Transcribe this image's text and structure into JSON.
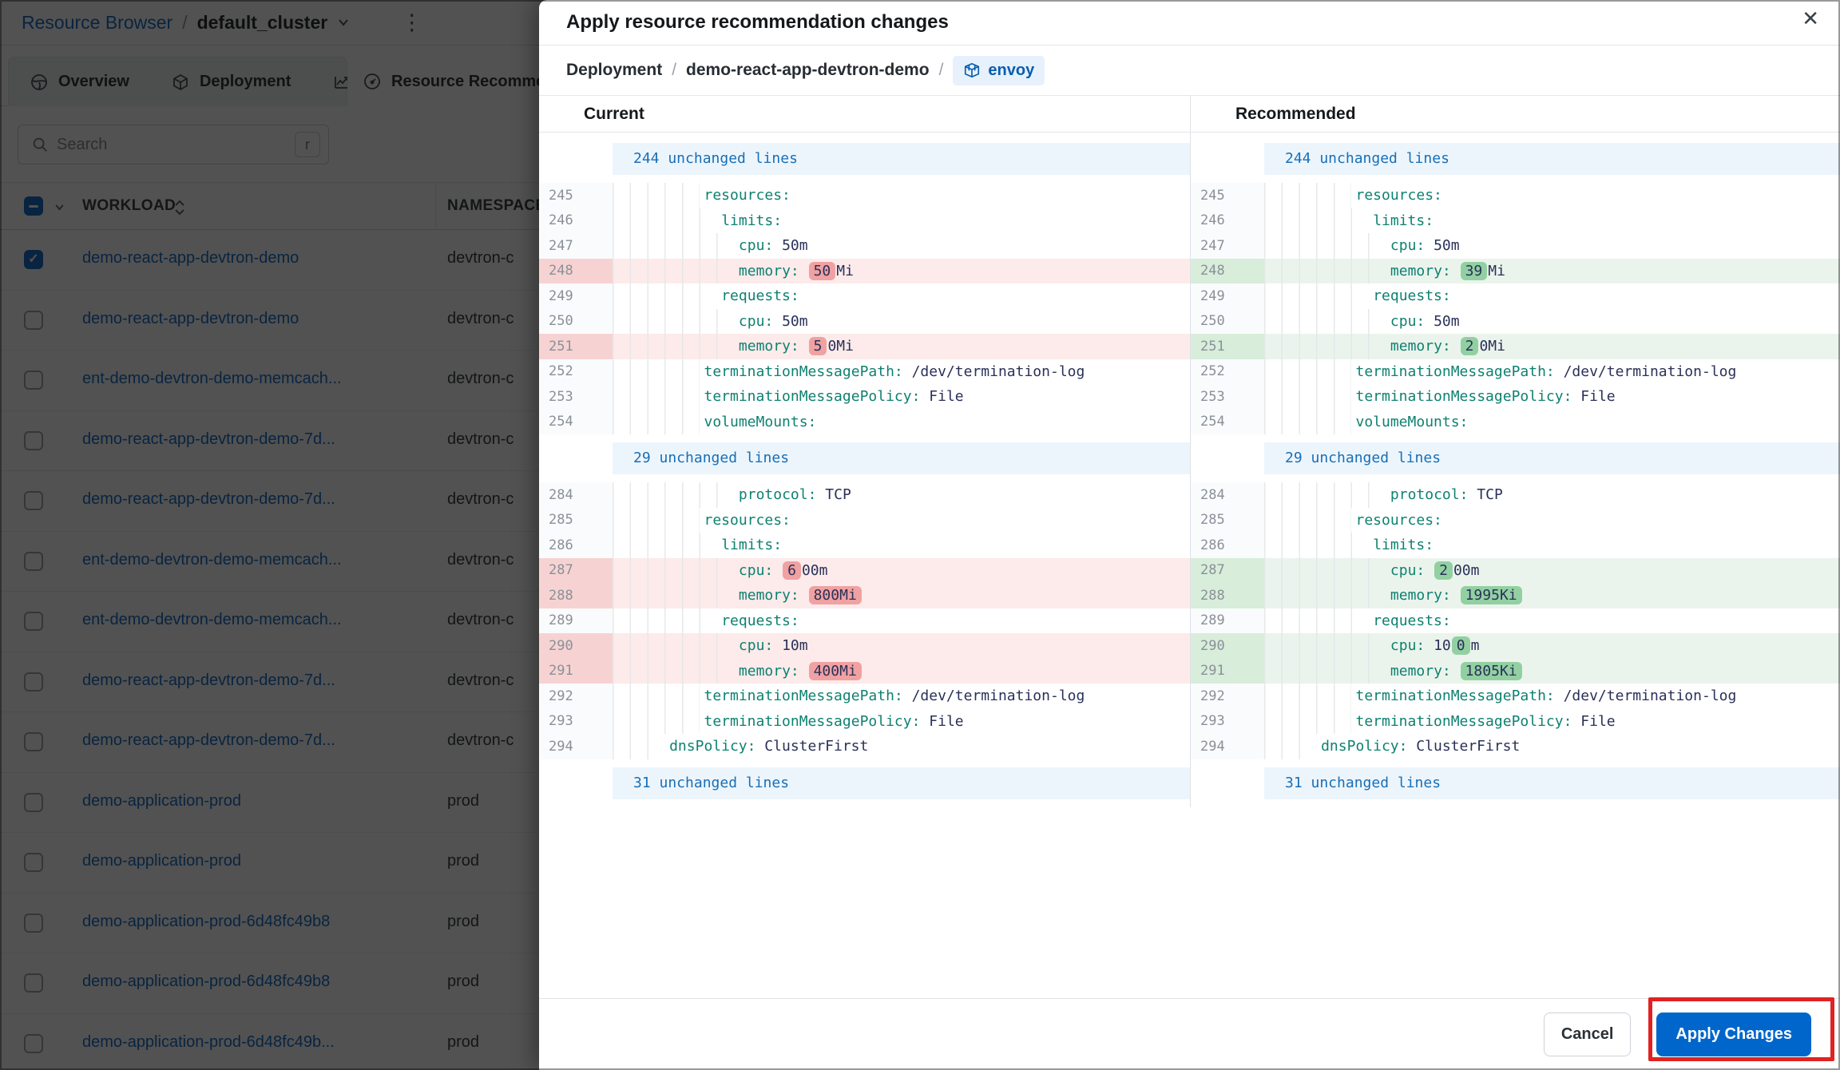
{
  "colors": {
    "accent_blue": "#0066cc",
    "link_blue": "#0a66c2",
    "yaml_key": "#0e8171",
    "yaml_value": "#2a3158",
    "diff_removed_line": "#fcebea",
    "diff_removed_chip": "#f0a1a1",
    "diff_added_line": "#ebf4ec",
    "diff_added_chip": "#92d0a2",
    "unchanged_band": "#edf5fc",
    "annotation_red": "#e02222"
  },
  "background": {
    "header": {
      "root": "Resource Browser",
      "separator": "/",
      "cluster": "default_cluster",
      "kebab_icon": "⋮"
    },
    "tabs": [
      {
        "label": "Overview",
        "icon": "globe-icon"
      },
      {
        "label": "Deployment",
        "icon": "cube-icon"
      },
      {
        "label": "",
        "icon": "line-chart-icon"
      },
      {
        "label": "Resource Recommendations",
        "icon": "gauge-icon",
        "active": true
      }
    ],
    "search": {
      "placeholder": "Search",
      "shortcut": "r"
    },
    "table": {
      "columns": {
        "workload": "WORKLOAD",
        "namespace": "NAMESPACE"
      },
      "rows": [
        {
          "workload": "demo-react-app-devtron-demo",
          "namespace": "devtron-c",
          "checked": true
        },
        {
          "workload": "demo-react-app-devtron-demo",
          "namespace": "devtron-c",
          "checked": false
        },
        {
          "workload": "ent-demo-devtron-demo-memcach...",
          "namespace": "devtron-c",
          "checked": false
        },
        {
          "workload": "demo-react-app-devtron-demo-7d...",
          "namespace": "devtron-c",
          "checked": false
        },
        {
          "workload": "demo-react-app-devtron-demo-7d...",
          "namespace": "devtron-c",
          "checked": false
        },
        {
          "workload": "ent-demo-devtron-demo-memcach...",
          "namespace": "devtron-c",
          "checked": false
        },
        {
          "workload": "ent-demo-devtron-demo-memcach...",
          "namespace": "devtron-c",
          "checked": false
        },
        {
          "workload": "demo-react-app-devtron-demo-7d...",
          "namespace": "devtron-c",
          "checked": false
        },
        {
          "workload": "demo-react-app-devtron-demo-7d...",
          "namespace": "devtron-c",
          "checked": false
        },
        {
          "workload": "demo-application-prod",
          "namespace": "prod",
          "checked": false
        },
        {
          "workload": "demo-application-prod",
          "namespace": "prod",
          "checked": false
        },
        {
          "workload": "demo-application-prod-6d48fc49b8",
          "namespace": "prod",
          "checked": false
        },
        {
          "workload": "demo-application-prod-6d48fc49b8",
          "namespace": "prod",
          "checked": false
        },
        {
          "workload": "demo-application-prod-6d48fc49b...",
          "namespace": "prod",
          "checked": false
        }
      ]
    }
  },
  "modal": {
    "title": "Apply resource recommendation changes",
    "close_icon": "✕",
    "breadcrumb": {
      "kind": "Deployment",
      "separator": "/",
      "name": "demo-react-app-devtron-demo",
      "container": "envoy"
    },
    "columns": {
      "left": "Current",
      "right": "Recommended"
    },
    "footer": {
      "cancel": "Cancel",
      "apply": "Apply Changes"
    },
    "diff": {
      "sections": [
        {
          "type": "collapsed",
          "label": "244 unchanged lines"
        },
        {
          "type": "code",
          "rows": [
            {
              "n": "245",
              "lvl": 5,
              "seg": [
                [
                  "k",
                  "resources:"
                ]
              ]
            },
            {
              "n": "246",
              "lvl": 6,
              "seg": [
                [
                  "k",
                  "limits:"
                ]
              ]
            },
            {
              "n": "247",
              "lvl": 7,
              "seg": [
                [
                  "k",
                  "cpu:"
                ],
                [
                  "v",
                  " 50m"
                ]
              ]
            },
            {
              "n": "248",
              "lvl": 7,
              "changed": true,
              "left": [
                [
                  "k",
                  "memory:"
                ],
                [
                  "v",
                  " "
                ],
                [
                  "h",
                  "50"
                ],
                [
                  "v",
                  "Mi"
                ]
              ],
              "right": [
                [
                  "k",
                  "memory:"
                ],
                [
                  "v",
                  " "
                ],
                [
                  "h",
                  "39"
                ],
                [
                  "v",
                  "Mi"
                ]
              ]
            },
            {
              "n": "249",
              "lvl": 6,
              "seg": [
                [
                  "k",
                  "requests:"
                ]
              ]
            },
            {
              "n": "250",
              "lvl": 7,
              "seg": [
                [
                  "k",
                  "cpu:"
                ],
                [
                  "v",
                  " 50m"
                ]
              ]
            },
            {
              "n": "251",
              "lvl": 7,
              "changed": true,
              "left": [
                [
                  "k",
                  "memory:"
                ],
                [
                  "v",
                  " "
                ],
                [
                  "h",
                  "5"
                ],
                [
                  "v",
                  "0Mi"
                ]
              ],
              "right": [
                [
                  "k",
                  "memory:"
                ],
                [
                  "v",
                  " "
                ],
                [
                  "h",
                  "2"
                ],
                [
                  "v",
                  "0Mi"
                ]
              ]
            },
            {
              "n": "252",
              "lvl": 5,
              "seg": [
                [
                  "k",
                  "terminationMessagePath:"
                ],
                [
                  "v",
                  " /dev/termination-log"
                ]
              ]
            },
            {
              "n": "253",
              "lvl": 5,
              "seg": [
                [
                  "k",
                  "terminationMessagePolicy:"
                ],
                [
                  "v",
                  " File"
                ]
              ]
            },
            {
              "n": "254",
              "lvl": 5,
              "seg": [
                [
                  "k",
                  "volumeMounts:"
                ]
              ]
            }
          ]
        },
        {
          "type": "collapsed",
          "label": "29 unchanged lines"
        },
        {
          "type": "code",
          "rows": [
            {
              "n": "284",
              "lvl": 7,
              "seg": [
                [
                  "k",
                  "protocol:"
                ],
                [
                  "v",
                  " TCP"
                ]
              ]
            },
            {
              "n": "285",
              "lvl": 5,
              "seg": [
                [
                  "k",
                  "resources:"
                ]
              ]
            },
            {
              "n": "286",
              "lvl": 6,
              "seg": [
                [
                  "k",
                  "limits:"
                ]
              ]
            },
            {
              "n": "287",
              "lvl": 7,
              "changed": true,
              "left": [
                [
                  "k",
                  "cpu:"
                ],
                [
                  "v",
                  " "
                ],
                [
                  "h",
                  "6"
                ],
                [
                  "v",
                  "00m"
                ]
              ],
              "right": [
                [
                  "k",
                  "cpu:"
                ],
                [
                  "v",
                  " "
                ],
                [
                  "h",
                  "2"
                ],
                [
                  "v",
                  "00m"
                ]
              ]
            },
            {
              "n": "288",
              "lvl": 7,
              "changed": true,
              "left": [
                [
                  "k",
                  "memory:"
                ],
                [
                  "v",
                  " "
                ],
                [
                  "h",
                  "800Mi"
                ]
              ],
              "right": [
                [
                  "k",
                  "memory:"
                ],
                [
                  "v",
                  " "
                ],
                [
                  "h",
                  "1995Ki"
                ]
              ]
            },
            {
              "n": "289",
              "lvl": 6,
              "seg": [
                [
                  "k",
                  "requests:"
                ]
              ]
            },
            {
              "n": "290",
              "lvl": 7,
              "changed": true,
              "left": [
                [
                  "k",
                  "cpu:"
                ],
                [
                  "v",
                  " 10m"
                ]
              ],
              "right": [
                [
                  "k",
                  "cpu:"
                ],
                [
                  "v",
                  " 10"
                ],
                [
                  "h",
                  "0"
                ],
                [
                  "v",
                  "m"
                ]
              ]
            },
            {
              "n": "291",
              "lvl": 7,
              "changed": true,
              "left": [
                [
                  "k",
                  "memory:"
                ],
                [
                  "v",
                  " "
                ],
                [
                  "h",
                  "400Mi"
                ]
              ],
              "right": [
                [
                  "k",
                  "memory:"
                ],
                [
                  "v",
                  " "
                ],
                [
                  "h",
                  "1805Ki"
                ]
              ]
            },
            {
              "n": "292",
              "lvl": 5,
              "seg": [
                [
                  "k",
                  "terminationMessagePath:"
                ],
                [
                  "v",
                  " /dev/termination-log"
                ]
              ]
            },
            {
              "n": "293",
              "lvl": 5,
              "seg": [
                [
                  "k",
                  "terminationMessagePolicy:"
                ],
                [
                  "v",
                  " File"
                ]
              ]
            },
            {
              "n": "294",
              "lvl": 3,
              "seg": [
                [
                  "k",
                  "dnsPolicy:"
                ],
                [
                  "v",
                  " ClusterFirst"
                ]
              ]
            }
          ]
        },
        {
          "type": "collapsed",
          "label": "31 unchanged lines"
        }
      ]
    }
  }
}
